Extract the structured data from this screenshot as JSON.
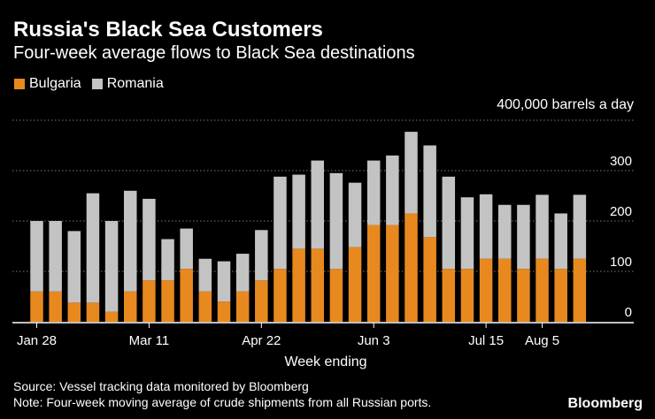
{
  "title": "Russia's Black Sea Customers",
  "subtitle": "Four-week average flows to Black Sea destinations",
  "units_label": "400,000 barrels a day",
  "source_line": "Source: Vessel tracking data monitored by Bloomberg",
  "note_line": "Note: Four-week moving average of crude shipments from all Russian ports.",
  "logo": "Bloomberg",
  "colors": {
    "bulgaria": "#e8891f",
    "romania": "#c3c3c3",
    "background": "#000000",
    "grid": "#777777"
  },
  "chart_data": {
    "type": "bar",
    "stacked": true,
    "title": "Russia's Black Sea Customers",
    "subtitle": "Four-week average flows to Black Sea destinations",
    "xlabel": "Week ending",
    "ylabel": "400,000 barrels a day",
    "ylim": [
      0,
      400
    ],
    "yticks": [
      0,
      100,
      200,
      300
    ],
    "grid": true,
    "legend_position": "top-left",
    "x_tick_labels": [
      {
        "index": 0,
        "label": "Jan 28"
      },
      {
        "index": 6,
        "label": "Mar 11"
      },
      {
        "index": 12,
        "label": "Apr 22"
      },
      {
        "index": 18,
        "label": "Jun 3"
      },
      {
        "index": 24,
        "label": "Jul 15"
      },
      {
        "index": 27,
        "label": "Aug 5"
      }
    ],
    "series": [
      {
        "name": "Bulgaria",
        "color": "#e8891f",
        "values": [
          60,
          60,
          38,
          38,
          20,
          60,
          82,
          82,
          105,
          60,
          40,
          60,
          82,
          105,
          145,
          145,
          105,
          148,
          192,
          192,
          215,
          168,
          105,
          105,
          125,
          125,
          105,
          125,
          105,
          125
        ]
      },
      {
        "name": "Romania",
        "color": "#c3c3c3",
        "values": [
          140,
          140,
          142,
          217,
          180,
          200,
          162,
          82,
          80,
          65,
          80,
          75,
          100,
          183,
          147,
          175,
          190,
          128,
          128,
          138,
          162,
          182,
          183,
          142,
          128,
          107,
          127,
          127,
          110,
          127
        ]
      }
    ]
  }
}
